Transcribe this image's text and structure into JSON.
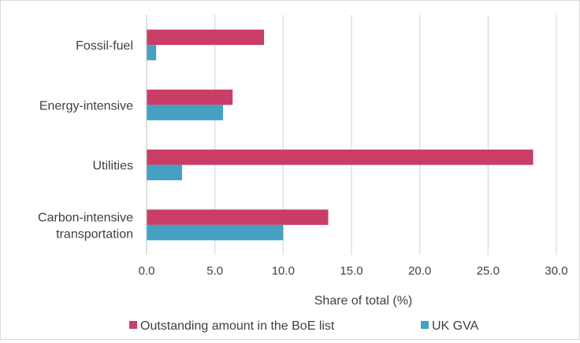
{
  "chart_data": {
    "type": "bar",
    "orientation": "horizontal",
    "categories": [
      "Fossil-fuel",
      "Energy-intensive",
      "Utilities",
      "Carbon-intensive transportation"
    ],
    "category_label_lines": [
      [
        "Fossil-fuel"
      ],
      [
        "Energy-intensive"
      ],
      [
        "Utilities"
      ],
      [
        "Carbon-intensive",
        "transportation"
      ]
    ],
    "series": [
      {
        "name": "Outstanding amount in the BoE list",
        "color": "#c93d67",
        "values": [
          8.6,
          6.3,
          28.3,
          13.3
        ]
      },
      {
        "name": "UK GVA",
        "color": "#46a0c2",
        "values": [
          0.7,
          5.6,
          2.6,
          10.0
        ]
      }
    ],
    "xlabel": "Share of total (%)",
    "xlim": [
      0,
      30
    ],
    "xticks": [
      "0.0",
      "5.0",
      "10.0",
      "15.0",
      "20.0",
      "25.0",
      "30.0"
    ],
    "grid": true,
    "legend_position": "bottom"
  }
}
